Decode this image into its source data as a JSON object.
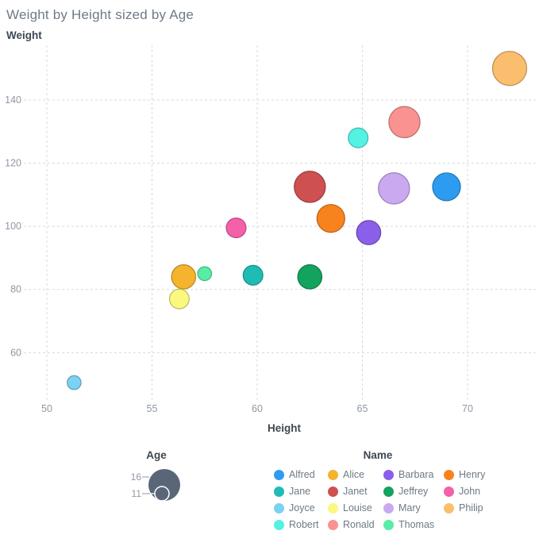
{
  "title": "Weight by Height sized by Age",
  "chart_data": {
    "type": "scatter",
    "subtype": "bubble",
    "title": "Weight by Height sized by Age",
    "xlabel": "Height",
    "ylabel": "Weight",
    "xlim": [
      49,
      73
    ],
    "ylim": [
      46.5,
      157.5
    ],
    "x_ticks": [
      50,
      55,
      60,
      65,
      70
    ],
    "y_ticks": [
      60,
      80,
      100,
      120,
      140
    ],
    "grid": true,
    "legend_position": "bottom",
    "size_legend": {
      "title": "Age",
      "max_value": 16,
      "min_value": 11,
      "circle_color": "#5A6678",
      "inner_ring_color": "#FFFFFF"
    },
    "color_legend": {
      "title": "Name",
      "columns": 4
    },
    "points": [
      {
        "name": "Alfred",
        "height": 69.0,
        "weight": 112.5,
        "age": 14,
        "color": "#2D9CF0"
      },
      {
        "name": "Alice",
        "height": 56.5,
        "weight": 84.0,
        "age": 13,
        "color": "#F5B32E"
      },
      {
        "name": "Barbara",
        "height": 65.3,
        "weight": 98.0,
        "age": 13,
        "color": "#8A5FE9"
      },
      {
        "name": "Henry",
        "height": 63.5,
        "weight": 102.5,
        "age": 14,
        "color": "#F8821D"
      },
      {
        "name": "Jane",
        "height": 59.8,
        "weight": 84.5,
        "age": 12,
        "color": "#1EBCB5"
      },
      {
        "name": "Janet",
        "height": 62.5,
        "weight": 112.5,
        "age": 15,
        "color": "#CE5050"
      },
      {
        "name": "Jeffrey",
        "height": 62.5,
        "weight": 84.0,
        "age": 13,
        "color": "#12A35F"
      },
      {
        "name": "John",
        "height": 59.0,
        "weight": 99.5,
        "age": 12,
        "color": "#F560AA"
      },
      {
        "name": "Joyce",
        "height": 51.3,
        "weight": 50.5,
        "age": 11,
        "color": "#7BD2F2"
      },
      {
        "name": "Louise",
        "height": 56.3,
        "weight": 77.0,
        "age": 12,
        "color": "#FAF87E"
      },
      {
        "name": "Mary",
        "height": 66.5,
        "weight": 112.0,
        "age": 15,
        "color": "#CBA9F0"
      },
      {
        "name": "Philip",
        "height": 72.0,
        "weight": 150.0,
        "age": 16,
        "color": "#FABE6E"
      },
      {
        "name": "Robert",
        "height": 64.8,
        "weight": 128.0,
        "age": 12,
        "color": "#54F2E3"
      },
      {
        "name": "Ronald",
        "height": 67.0,
        "weight": 133.0,
        "age": 15,
        "color": "#F99290"
      },
      {
        "name": "Thomas",
        "height": 57.5,
        "weight": 85.0,
        "age": 11,
        "color": "#58EDA6"
      }
    ]
  }
}
